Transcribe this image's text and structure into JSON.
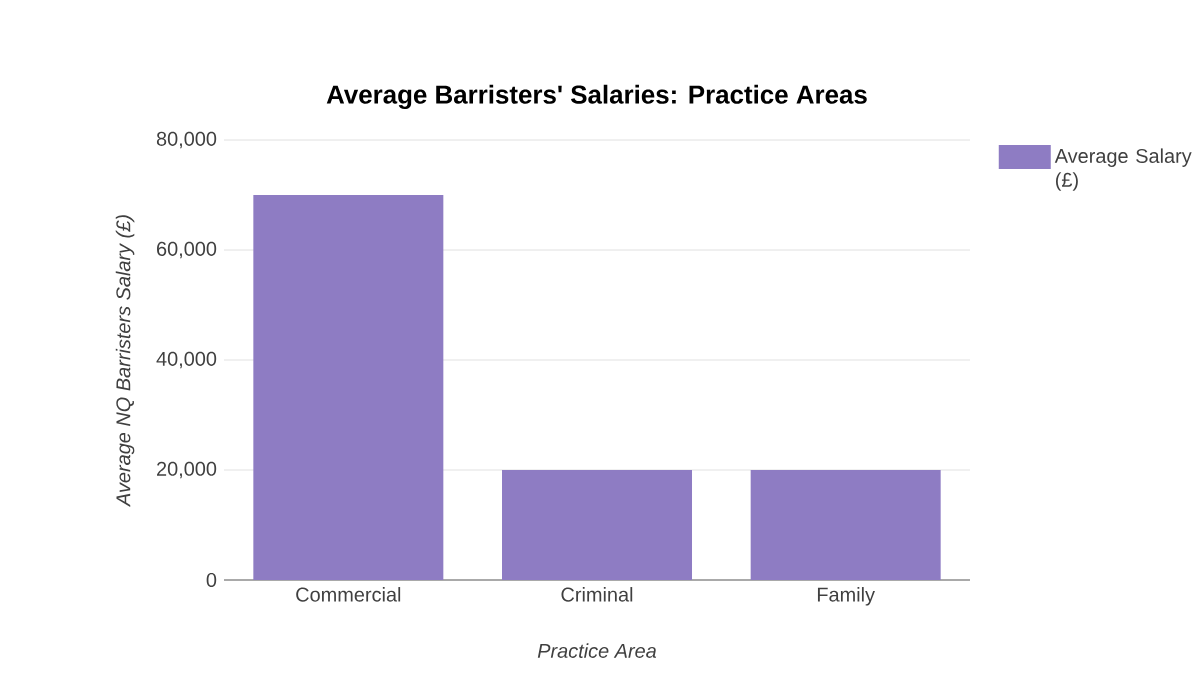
{
  "chart_data": {
    "type": "bar",
    "title": "Average Barristers' Salaries: Practice Areas",
    "xlabel": "Practice Area",
    "ylabel": "Average NQ Barristers Salary (£)",
    "categories": [
      "Commercial",
      "Criminal",
      "Family"
    ],
    "series": [
      {
        "name": "Average Salary (£)",
        "color": "#8e7cc3",
        "values": [
          70000,
          20000,
          20000
        ]
      }
    ],
    "ylim": [
      0,
      80000
    ],
    "yticks": [
      0,
      {
        "value": 20000,
        "label": "20,000"
      },
      {
        "value": 40000,
        "label": "40,000"
      },
      {
        "value": 60000,
        "label": "60,000"
      },
      {
        "value": 80000,
        "label": "80,000"
      }
    ],
    "grid": "y",
    "legend": "top right"
  }
}
